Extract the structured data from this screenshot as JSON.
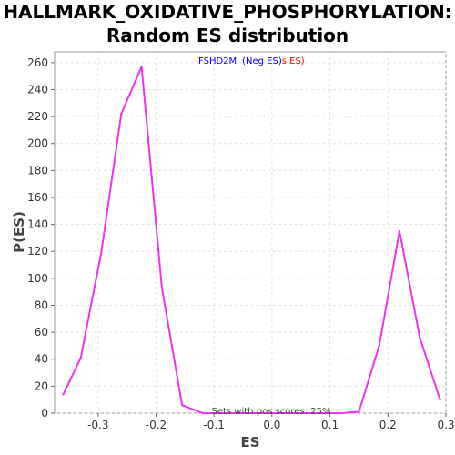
{
  "chart_data": {
    "type": "line",
    "title_line1": "HALLMARK_OXIDATIVE_PHOSPHORYLATION:",
    "title_line2": "Random ES distribution",
    "xlabel": "ES",
    "ylabel": "P(ES)",
    "xlim": [
      -0.375,
      0.3
    ],
    "ylim": [
      0,
      268
    ],
    "x_ticks": [
      -0.3,
      -0.2,
      -0.1,
      0.0,
      0.1,
      0.2,
      0.3
    ],
    "x_tick_labels": [
      "-0.3",
      "-0.2",
      "-0.1",
      "0.0",
      "0.1",
      "0.2",
      "0.3"
    ],
    "y_ticks": [
      0,
      20,
      40,
      60,
      80,
      100,
      120,
      140,
      160,
      180,
      200,
      220,
      240,
      260
    ],
    "grid": true,
    "legend": {
      "position": "top-center",
      "label_prefix": "'FSHD2M' (Neg ES)",
      "label_suffix": "s ES)",
      "prefix_color": "#0000ff",
      "suffix_color": "#ff0000"
    },
    "annotation": "Sets with pos scores: 25%",
    "series": [
      {
        "color": "#ee33ee",
        "x": [
          -0.36,
          -0.33,
          -0.295,
          -0.26,
          -0.225,
          -0.19,
          -0.155,
          -0.12,
          -0.09,
          -0.06,
          -0.03,
          0.0,
          0.03,
          0.06,
          0.09,
          0.12,
          0.15,
          0.185,
          0.22,
          0.255,
          0.29
        ],
        "y": [
          14,
          41,
          118,
          222,
          257,
          93,
          6,
          0,
          0,
          0,
          0,
          0,
          0,
          0,
          0,
          0,
          1,
          50,
          135,
          56,
          10
        ]
      }
    ]
  }
}
